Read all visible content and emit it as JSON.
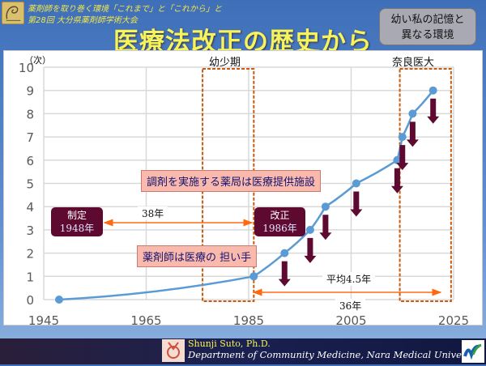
{
  "header": {
    "conference_line1": "薬剤師を取り巻く環境「これまで」と「これから」と",
    "conference_line2": "第28回 大分県薬剤師学術大会",
    "title": "医療法改正の歴史から",
    "memo_line1": "幼い私の記憶と",
    "memo_line2": "異なる環境"
  },
  "chart_data": {
    "type": "line",
    "ylabel": "（次）",
    "xlim": [
      1945,
      2025
    ],
    "ylim": [
      0,
      10
    ],
    "x_ticks": [
      "1945",
      "1965",
      "1985",
      "2005",
      "2025"
    ],
    "y_ticks": [
      "0",
      "1",
      "2",
      "3",
      "4",
      "5",
      "6",
      "7",
      "8",
      "9",
      "10"
    ],
    "grid": true,
    "x": [
      1948,
      1986,
      1992,
      1997,
      2000,
      2006,
      2014,
      2015,
      2017,
      2021
    ],
    "y": [
      0,
      1,
      2,
      3,
      4,
      5,
      6,
      7,
      8,
      9
    ],
    "line_color": "#5b9bd5",
    "arrow_color": "#5e0a30",
    "period_color": "#c55a11",
    "annotations": {
      "childhood": "幼少期",
      "nara": "奈良医大",
      "enact_title": "制定",
      "enact_year": "1948年",
      "revise_title": "改正",
      "revise_year": "1986年",
      "span1": "38年",
      "span2": "36年",
      "average": "平均4.5年",
      "callout1": "調剤を実施する薬局は医療提供施設",
      "callout2": "薬剤師は医療の 担い手"
    }
  },
  "footer": {
    "name": "Shunji Suto, Ph.D.",
    "department": "Department of Community Medicine, Nara Medical University"
  }
}
